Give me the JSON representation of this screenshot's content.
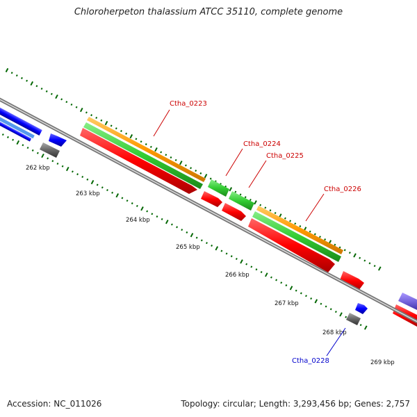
{
  "title": "Chloroherpeton thalassium ATCC 35110, complete genome",
  "footer": {
    "accession": "Accession: NC_011026",
    "summary": "Topology: circular; Length: 3,293,456 bp; Genes: 2,757"
  },
  "ticks": [
    "262 kbp",
    "263 kbp",
    "264 kbp",
    "265 kbp",
    "266 kbp",
    "267 kbp",
    "268 kbp",
    "269 kbp"
  ],
  "gene_labels": {
    "g0223": "Ctha_0223",
    "g0224": "Ctha_0224",
    "g0225": "Ctha_0225",
    "g0226": "Ctha_0226",
    "g0228": "Ctha_0228"
  },
  "colors": {
    "backbone": "#888888",
    "cds": "#ff0000",
    "gene": "#33cc33",
    "orange": "#ff9900",
    "blue": "#0000ff",
    "gray": "#666666",
    "purple": "#7766dd",
    "label_red": "#cc0000",
    "label_blue": "#0000cc",
    "tick": "#006600"
  }
}
